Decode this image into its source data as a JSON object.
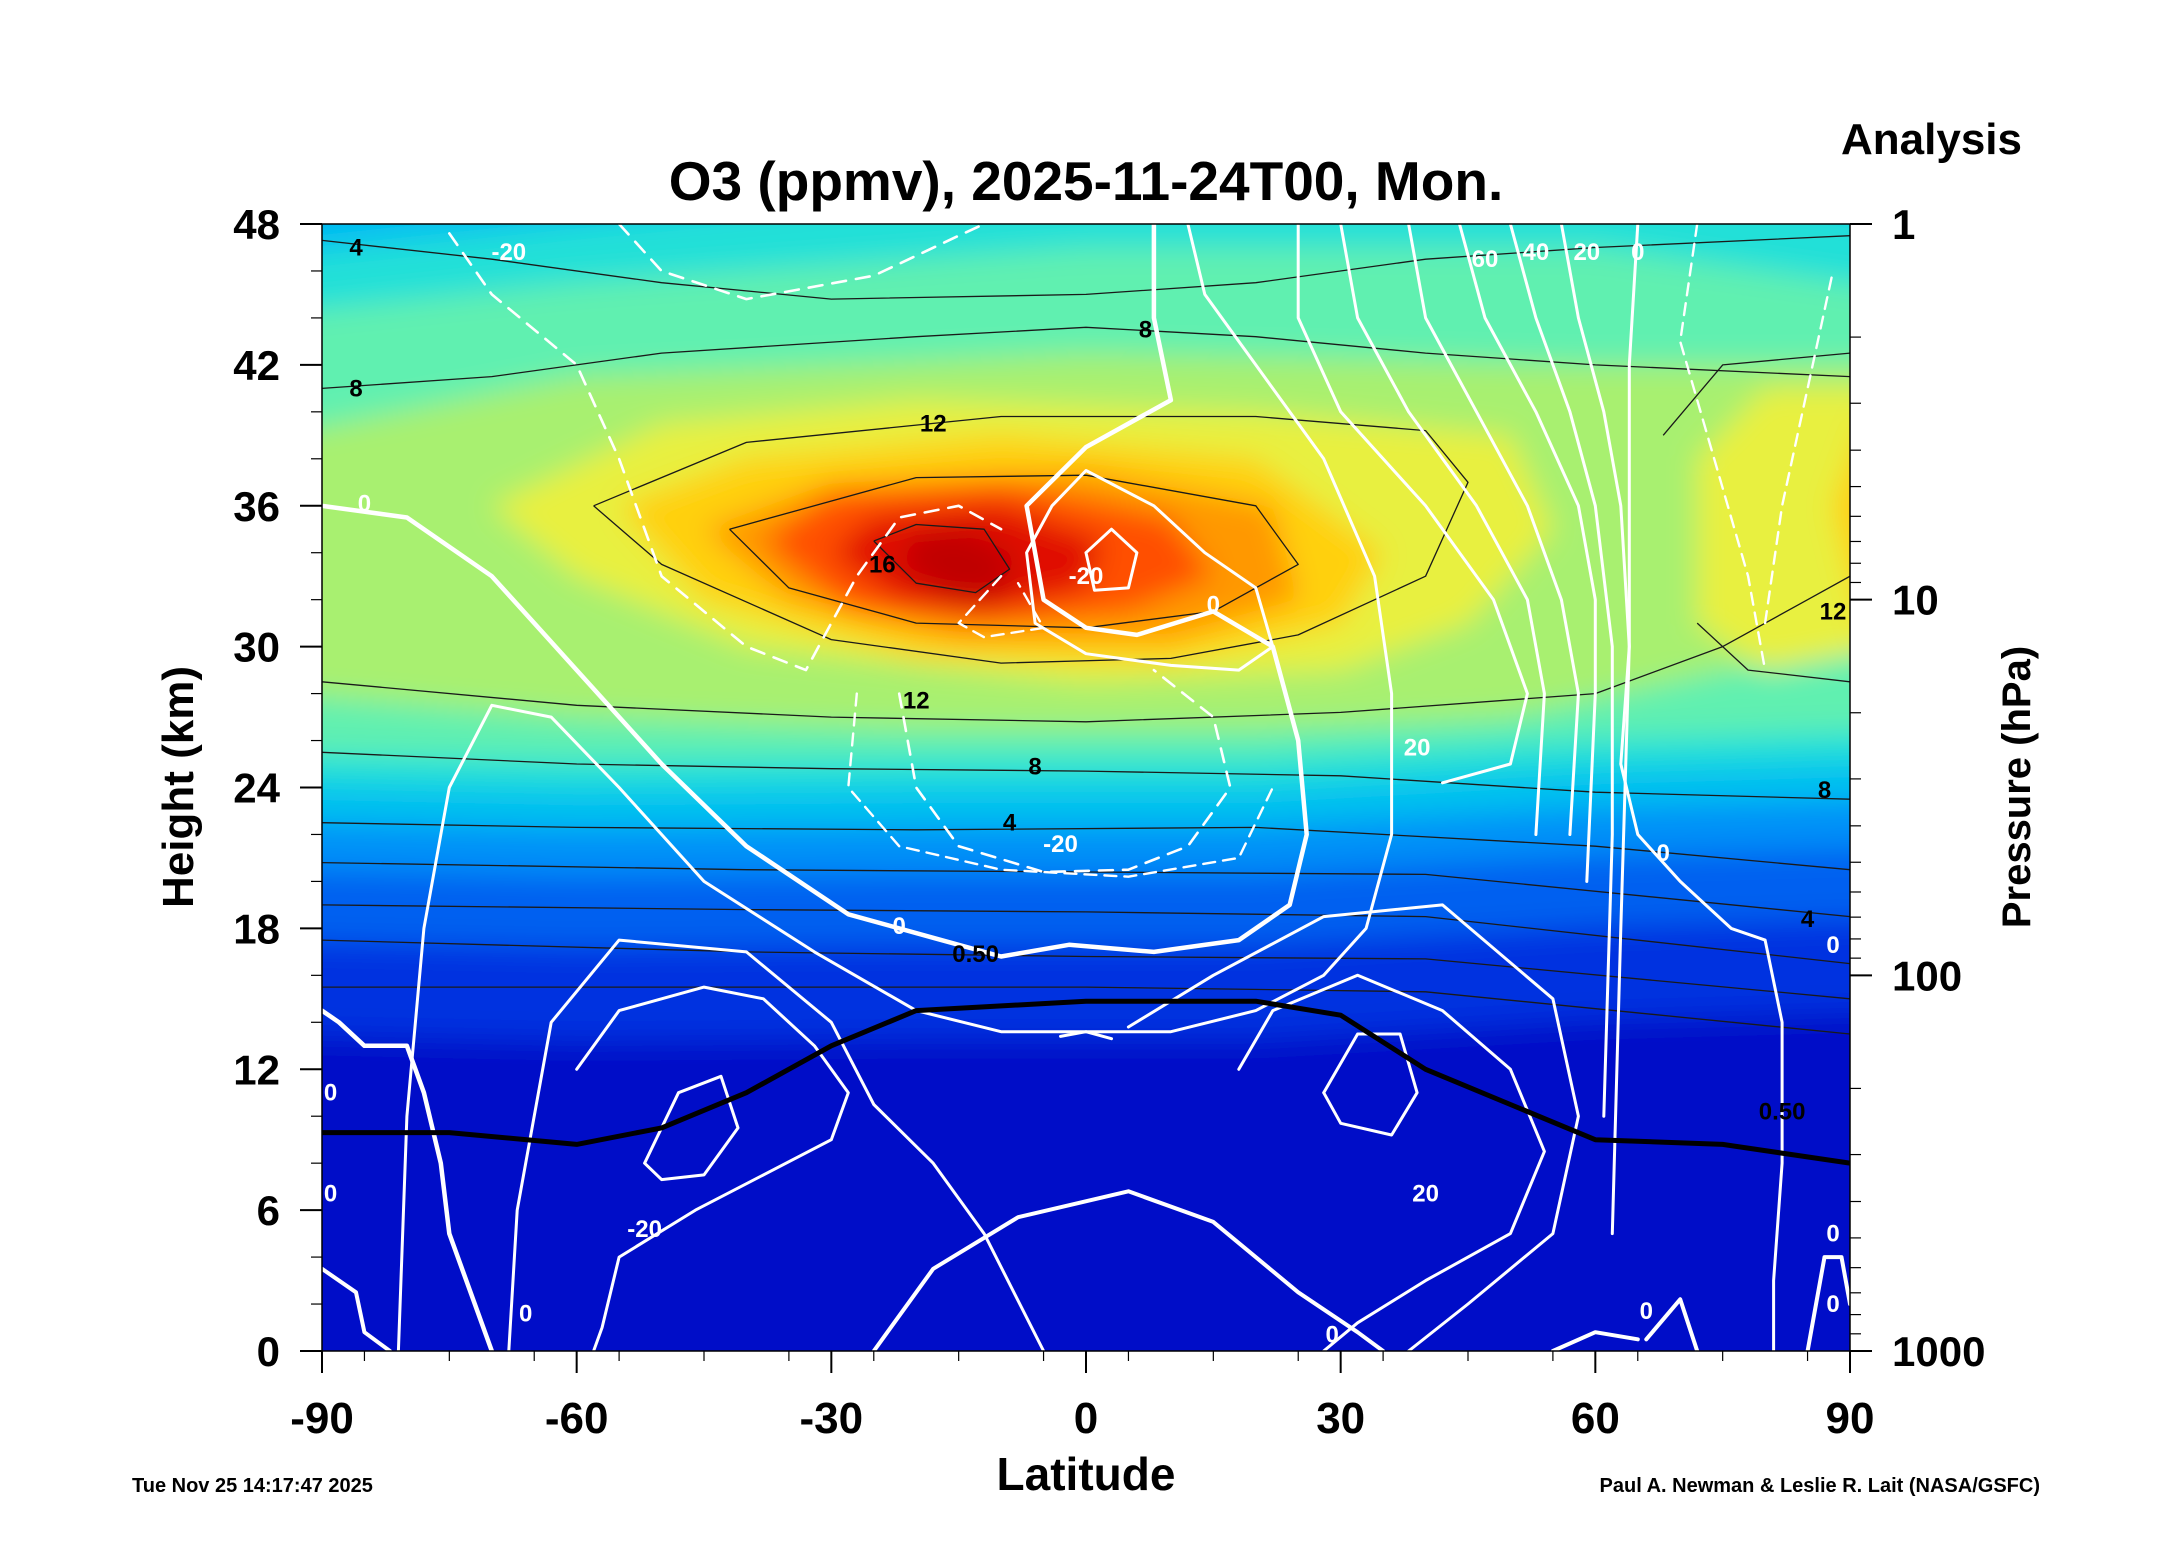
{
  "chart_data": {
    "type": "heatmap",
    "title": "O3 (ppmv), 2025-11-24T00, Mon.",
    "corner_label": "Analysis",
    "xlabel": "Latitude",
    "ylabel": "Height (km)",
    "y2label": "Pressure (hPa)",
    "xlim": [
      -90,
      90
    ],
    "ylim": [
      0,
      48
    ],
    "x_ticks": [
      "-90",
      "-60",
      "-30",
      "0",
      "30",
      "60",
      "90"
    ],
    "y_ticks": [
      "0",
      "6",
      "12",
      "18",
      "24",
      "30",
      "36",
      "42",
      "48"
    ],
    "pressure_ticks": [
      {
        "label": "1",
        "value": 1
      },
      {
        "label": "10",
        "value": 10
      },
      {
        "label": "100",
        "value": 100
      },
      {
        "label": "1000",
        "value": 1000
      }
    ],
    "colors": {
      "colormap": [
        "#0010c8",
        "#0030e0",
        "#0060f0",
        "#0090f8",
        "#00c0f0",
        "#20e0d8",
        "#60f0b0",
        "#a8f070",
        "#e8f040",
        "#ffd010",
        "#ff9800",
        "#ff5000",
        "#e01000",
        "#c00000"
      ],
      "contour_black": "#000000",
      "contour_white": "#ffffff"
    },
    "ozone_contour_labels": [
      {
        "text": "4",
        "lat": -86,
        "z": 47
      },
      {
        "text": "8",
        "lat": -86,
        "z": 41
      },
      {
        "text": "8",
        "lat": 7,
        "z": 43.5
      },
      {
        "text": "12",
        "lat": -18,
        "z": 39.5
      },
      {
        "text": "16",
        "lat": -24,
        "z": 33.5
      },
      {
        "text": "12",
        "lat": -20,
        "z": 27.7
      },
      {
        "text": "8",
        "lat": -6,
        "z": 24.9
      },
      {
        "text": "4",
        "lat": -9,
        "z": 22.5
      },
      {
        "text": "12",
        "lat": 88,
        "z": 31.5
      },
      {
        "text": "8",
        "lat": 87,
        "z": 23.9
      },
      {
        "text": "4",
        "lat": 85,
        "z": 18.4
      },
      {
        "text": "0.50",
        "lat": -13,
        "z": 16.9
      },
      {
        "text": "0.50",
        "lat": 82,
        "z": 10.2
      }
    ],
    "wind_contour_labels": [
      {
        "text": "-20",
        "lat": -68,
        "z": 46.8
      },
      {
        "text": "0",
        "lat": -85,
        "z": 36.1
      },
      {
        "text": "-20",
        "lat": 0,
        "z": 33.0
      },
      {
        "text": "0",
        "lat": 15,
        "z": 31.8
      },
      {
        "text": "60",
        "lat": 47,
        "z": 46.5
      },
      {
        "text": "40",
        "lat": 53,
        "z": 46.8
      },
      {
        "text": "20",
        "lat": 59,
        "z": 46.8
      },
      {
        "text": "0",
        "lat": 65,
        "z": 46.8
      },
      {
        "text": "20",
        "lat": 39,
        "z": 25.7
      },
      {
        "text": "-20",
        "lat": -3,
        "z": 21.6
      },
      {
        "text": "0",
        "lat": -22,
        "z": 18.1
      },
      {
        "text": "0",
        "lat": 68,
        "z": 21.2
      },
      {
        "text": "-20",
        "lat": -52,
        "z": 5.2
      },
      {
        "text": "20",
        "lat": 40,
        "z": 6.7
      },
      {
        "text": "0",
        "lat": -66,
        "z": 1.6
      },
      {
        "text": "0",
        "lat": 29,
        "z": 0.7
      },
      {
        "text": "0",
        "lat": 66,
        "z": 1.7
      },
      {
        "text": "0",
        "lat": -89,
        "z": 11.0
      },
      {
        "text": "0",
        "lat": -89,
        "z": 6.7
      },
      {
        "text": "0",
        "lat": 88,
        "z": 17.3
      },
      {
        "text": "0",
        "lat": 88,
        "z": 5.0
      },
      {
        "text": "0",
        "lat": 88,
        "z": 2.0
      }
    ]
  },
  "footer": {
    "timestamp": "Tue Nov 25 14:17:47 2025",
    "credit": "Paul A. Newman & Leslie R. Lait (NASA/GSFC)"
  }
}
